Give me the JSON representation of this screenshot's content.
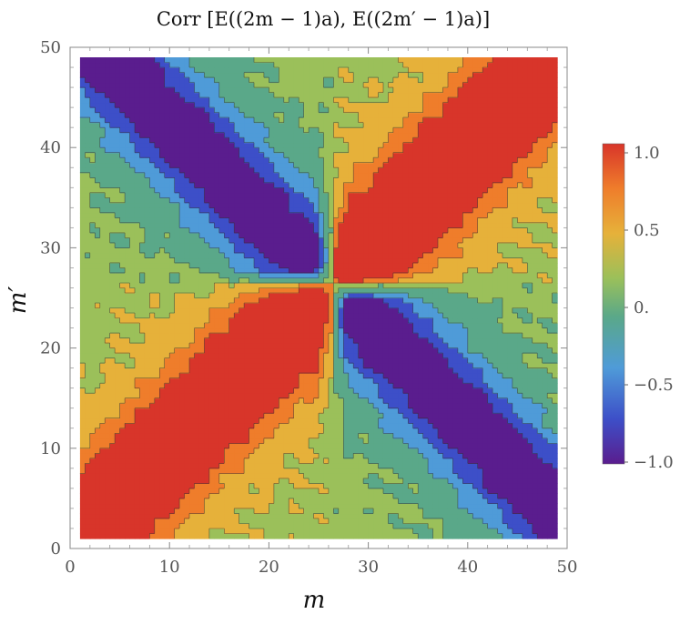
{
  "chart_data": {
    "type": "heatmap",
    "subtype": "contour",
    "title": "Corr [E((2m − 1)a), E((2m′ − 1)a)]",
    "xlabel": "m",
    "ylabel": "m′",
    "xlim": [
      0,
      50
    ],
    "ylim": [
      0,
      50
    ],
    "data_extent": [
      1,
      49
    ],
    "x_ticks": [
      "0",
      "10",
      "20",
      "30",
      "40",
      "50"
    ],
    "y_ticks": [
      "0",
      "10",
      "20",
      "30",
      "40",
      "50"
    ],
    "colorbar": {
      "range": [
        -1.0,
        1.0
      ],
      "ticks": [
        "1.0",
        "0.5",
        "0.",
        "−0.5",
        "−1.0"
      ],
      "tick_values": [
        1.0,
        0.5,
        0.0,
        -0.5,
        -1.0
      ],
      "colormap": [
        "#5a1d8e",
        "#3d4fc8",
        "#4f9bd8",
        "#5aa889",
        "#9bc05a",
        "#e6b13a",
        "#ef7d2b",
        "#d8352a"
      ]
    },
    "contour_levels": [
      -0.875,
      -0.625,
      -0.375,
      -0.125,
      0.125,
      0.375,
      0.625,
      0.875
    ],
    "level_colors": [
      "#5a1d8e",
      "#3d4fc8",
      "#4f9bd8",
      "#5aa889",
      "#9bc05a",
      "#e6b13a",
      "#ef7d2b",
      "#d8352a"
    ],
    "center": [
      26.3,
      26.3
    ],
    "structure": {
      "diagonal_m_eq_m_prime": 1.0,
      "anti_diagonal_sign": -0.9,
      "other_quadrants": 0.05
    },
    "grid": false,
    "legend": "colorbar-right"
  }
}
